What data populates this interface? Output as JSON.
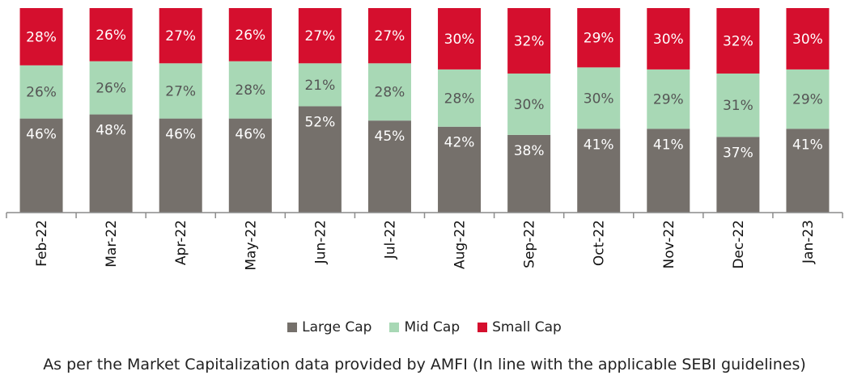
{
  "chart_data": {
    "type": "bar",
    "stacked": true,
    "categories": [
      "Feb-22",
      "Mar-22",
      "Apr-22",
      "May-22",
      "Jun-22",
      "Jul-22",
      "Aug-22",
      "Sep-22",
      "Oct-22",
      "Nov-22",
      "Dec-22",
      "Jan-23"
    ],
    "series": [
      {
        "name": "Large Cap",
        "color": "#75706b",
        "values": [
          46,
          48,
          46,
          46,
          52,
          45,
          42,
          38,
          41,
          41,
          37,
          41
        ],
        "labels": [
          "46%",
          "48%",
          "46%",
          "46%",
          "52%",
          "45%",
          "42%",
          "38%",
          "41%",
          "41%",
          "37%",
          "41%"
        ]
      },
      {
        "name": "Mid Cap",
        "color": "#a8d8b5",
        "values": [
          26,
          26,
          27,
          28,
          21,
          28,
          28,
          30,
          30,
          29,
          31,
          29
        ],
        "labels": [
          "26%",
          "26%",
          "27%",
          "28%",
          "21%",
          "28%",
          "28%",
          "30%",
          "30%",
          "29%",
          "31%",
          "29%"
        ]
      },
      {
        "name": "Small Cap",
        "color": "#d50f2e",
        "values": [
          28,
          26,
          27,
          26,
          27,
          27,
          30,
          32,
          29,
          30,
          32,
          30
        ],
        "labels": [
          "28%",
          "26%",
          "27%",
          "26%",
          "27%",
          "27%",
          "30%",
          "32%",
          "29%",
          "30%",
          "32%",
          "30%"
        ]
      }
    ],
    "ylim": [
      0,
      100
    ],
    "grid": false,
    "legend_position": "bottom"
  },
  "footnote": "As per the Market Capitalization data provided by AMFI (In line with the applicable SEBI guidelines)"
}
